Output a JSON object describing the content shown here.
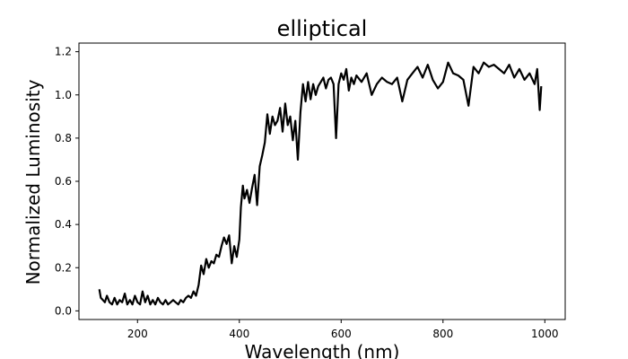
{
  "chart_data": {
    "type": "line",
    "title": "elliptical",
    "xlabel": "Wavelength (nm)",
    "ylabel": "Normalized Luminosity",
    "xlim": [
      85,
      1040
    ],
    "ylim": [
      -0.04,
      1.24
    ],
    "xticks": [
      200,
      400,
      600,
      800,
      1000
    ],
    "yticks": [
      0.0,
      0.2,
      0.4,
      0.6,
      0.8,
      1.0,
      1.2
    ],
    "grid": false,
    "line_color": "#000000",
    "series": [
      {
        "x": [
          125,
          128,
          132,
          136,
          140,
          145,
          150,
          155,
          160,
          165,
          170,
          175,
          180,
          185,
          190,
          195,
          200,
          205,
          210,
          215,
          220,
          225,
          230,
          235,
          240,
          245,
          250,
          255,
          260,
          265,
          270,
          275,
          280,
          285,
          290,
          295,
          300,
          305,
          310,
          315,
          320,
          325,
          330,
          335,
          340,
          345,
          350,
          355,
          360,
          365,
          370,
          375,
          380,
          385,
          390,
          395,
          400,
          403,
          407,
          410,
          415,
          420,
          425,
          430,
          435,
          440,
          445,
          450,
          455,
          460,
          465,
          470,
          475,
          480,
          485,
          490,
          495,
          500,
          505,
          510,
          515,
          520,
          525,
          530,
          535,
          540,
          545,
          550,
          555,
          560,
          565,
          570,
          575,
          580,
          585,
          590,
          595,
          600,
          605,
          610,
          615,
          620,
          625,
          630,
          640,
          650,
          660,
          670,
          680,
          690,
          700,
          710,
          720,
          730,
          740,
          750,
          760,
          770,
          780,
          790,
          800,
          810,
          820,
          830,
          840,
          850,
          860,
          870,
          880,
          890,
          900,
          910,
          920,
          930,
          940,
          950,
          960,
          970,
          980,
          985,
          990,
          993
        ],
        "y": [
          0.1,
          0.06,
          0.05,
          0.04,
          0.07,
          0.04,
          0.03,
          0.06,
          0.03,
          0.05,
          0.04,
          0.08,
          0.03,
          0.05,
          0.03,
          0.07,
          0.04,
          0.03,
          0.09,
          0.04,
          0.07,
          0.03,
          0.05,
          0.03,
          0.06,
          0.04,
          0.03,
          0.05,
          0.03,
          0.04,
          0.05,
          0.04,
          0.03,
          0.05,
          0.04,
          0.06,
          0.07,
          0.06,
          0.09,
          0.07,
          0.12,
          0.21,
          0.17,
          0.24,
          0.2,
          0.23,
          0.22,
          0.26,
          0.25,
          0.3,
          0.34,
          0.31,
          0.35,
          0.22,
          0.3,
          0.25,
          0.33,
          0.48,
          0.58,
          0.52,
          0.56,
          0.5,
          0.57,
          0.63,
          0.49,
          0.67,
          0.72,
          0.78,
          0.91,
          0.82,
          0.9,
          0.86,
          0.88,
          0.94,
          0.83,
          0.96,
          0.86,
          0.9,
          0.79,
          0.88,
          0.7,
          0.92,
          1.05,
          0.97,
          1.06,
          0.98,
          1.05,
          1.0,
          1.04,
          1.06,
          1.08,
          1.03,
          1.07,
          1.08,
          1.05,
          0.8,
          1.05,
          1.1,
          1.07,
          1.12,
          1.02,
          1.08,
          1.05,
          1.09,
          1.06,
          1.1,
          1.0,
          1.05,
          1.08,
          1.06,
          1.05,
          1.08,
          0.97,
          1.07,
          1.1,
          1.13,
          1.08,
          1.14,
          1.07,
          1.03,
          1.06,
          1.15,
          1.1,
          1.09,
          1.07,
          0.95,
          1.13,
          1.1,
          1.15,
          1.13,
          1.14,
          1.12,
          1.1,
          1.14,
          1.08,
          1.12,
          1.07,
          1.1,
          1.05,
          1.12,
          0.93,
          1.04
        ]
      }
    ]
  }
}
